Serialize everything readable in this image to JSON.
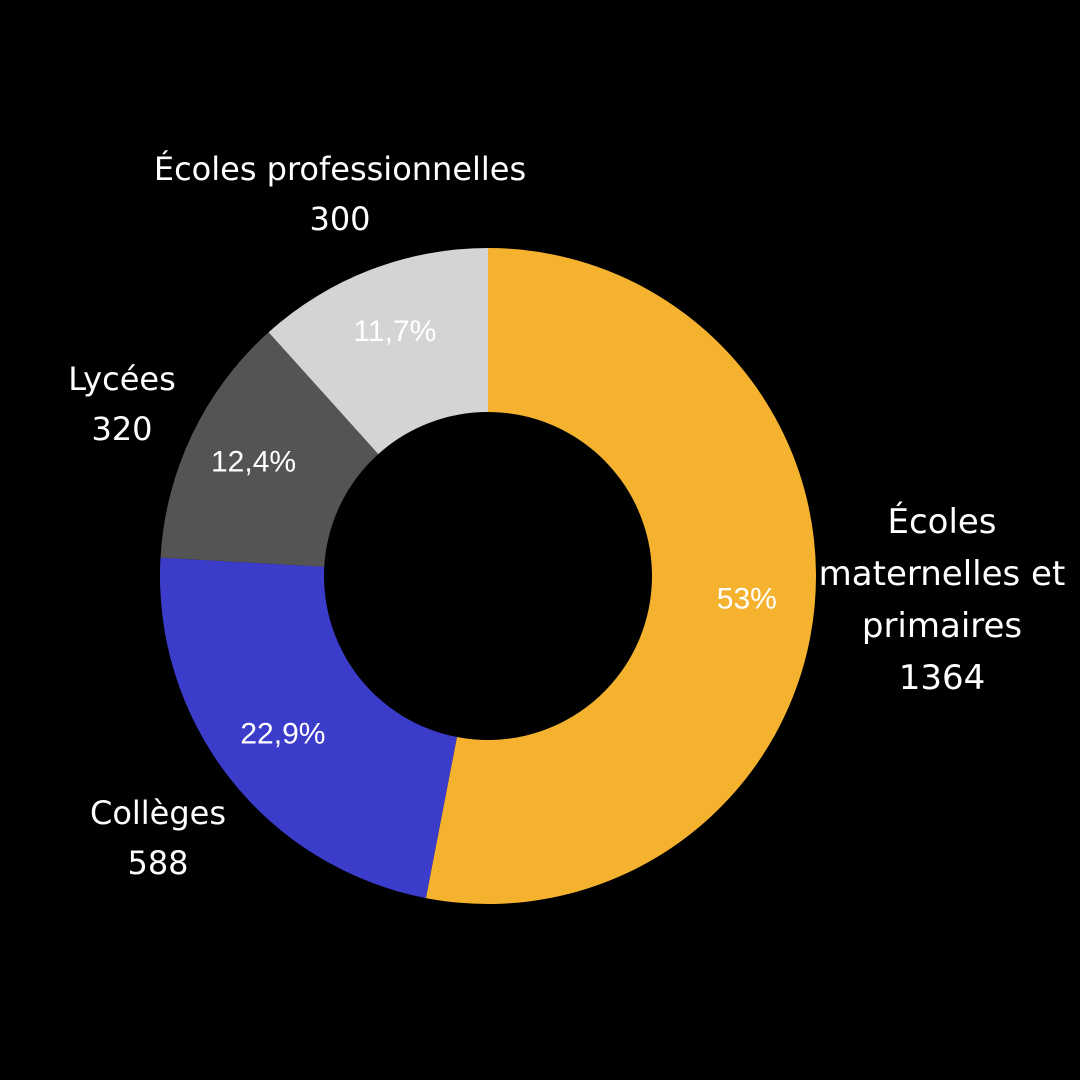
{
  "chart_data": {
    "type": "pie",
    "variant": "donut",
    "categories": [
      "Écoles maternelles et primaires",
      "Collèges",
      "Lycées",
      "Écoles professionnelles"
    ],
    "values": [
      1364,
      588,
      320,
      300
    ],
    "value_labels": [
      "1364",
      "588",
      "320",
      "300"
    ],
    "percent_labels": [
      "53%",
      "22,9%",
      "12,4%",
      "11,7%"
    ],
    "colors": [
      "#F5B22E",
      "#3C3CCB",
      "#545454",
      "#D4D4D4"
    ],
    "start": "top",
    "direction": "clockwise",
    "background": "#000000"
  }
}
